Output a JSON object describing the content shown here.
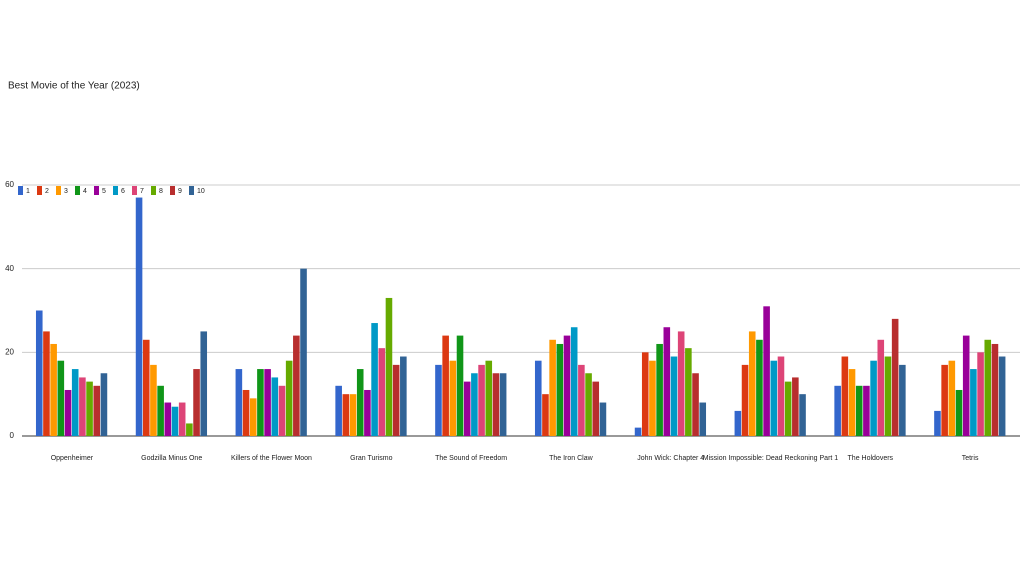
{
  "chart_data": {
    "type": "bar",
    "title": "Best Movie of the Year (2023)",
    "categories": [
      "Oppenheimer",
      "Godzilla Minus One",
      "Killers of the Flower Moon",
      "Gran Turismo",
      "The Sound of Freedom",
      "The Iron Claw",
      "John Wick: Chapter 4",
      "Mission Impossible: Dead Reckoning Part 1",
      "The Holdovers",
      "Tetris"
    ],
    "series": [
      {
        "name": "1",
        "color": "#3366cc",
        "values": [
          30,
          57,
          16,
          12,
          17,
          18,
          2,
          6,
          12,
          6
        ]
      },
      {
        "name": "2",
        "color": "#dc3912",
        "values": [
          25,
          23,
          11,
          10,
          24,
          10,
          20,
          17,
          19,
          17
        ]
      },
      {
        "name": "3",
        "color": "#ff9900",
        "values": [
          22,
          17,
          9,
          10,
          18,
          23,
          18,
          25,
          16,
          18
        ]
      },
      {
        "name": "4",
        "color": "#109618",
        "values": [
          18,
          12,
          16,
          16,
          24,
          22,
          22,
          23,
          12,
          11
        ]
      },
      {
        "name": "5",
        "color": "#990099",
        "values": [
          11,
          8,
          16,
          11,
          13,
          24,
          26,
          31,
          12,
          24
        ]
      },
      {
        "name": "6",
        "color": "#0099c6",
        "values": [
          16,
          7,
          14,
          27,
          15,
          26,
          19,
          18,
          18,
          16
        ]
      },
      {
        "name": "7",
        "color": "#dd4477",
        "values": [
          14,
          8,
          12,
          21,
          17,
          17,
          25,
          19,
          23,
          20
        ]
      },
      {
        "name": "8",
        "color": "#66aa00",
        "values": [
          13,
          3,
          18,
          33,
          18,
          15,
          21,
          13,
          19,
          23
        ]
      },
      {
        "name": "9",
        "color": "#b82e2e",
        "values": [
          12,
          16,
          24,
          17,
          15,
          13,
          15,
          14,
          28,
          22
        ]
      },
      {
        "name": "10",
        "color": "#316395",
        "values": [
          15,
          25,
          40,
          19,
          15,
          8,
          8,
          10,
          17,
          19
        ]
      }
    ],
    "ylim": [
      0,
      60
    ],
    "yticks": [
      0,
      20,
      40,
      60
    ],
    "grid": true,
    "legend": "top-left"
  }
}
